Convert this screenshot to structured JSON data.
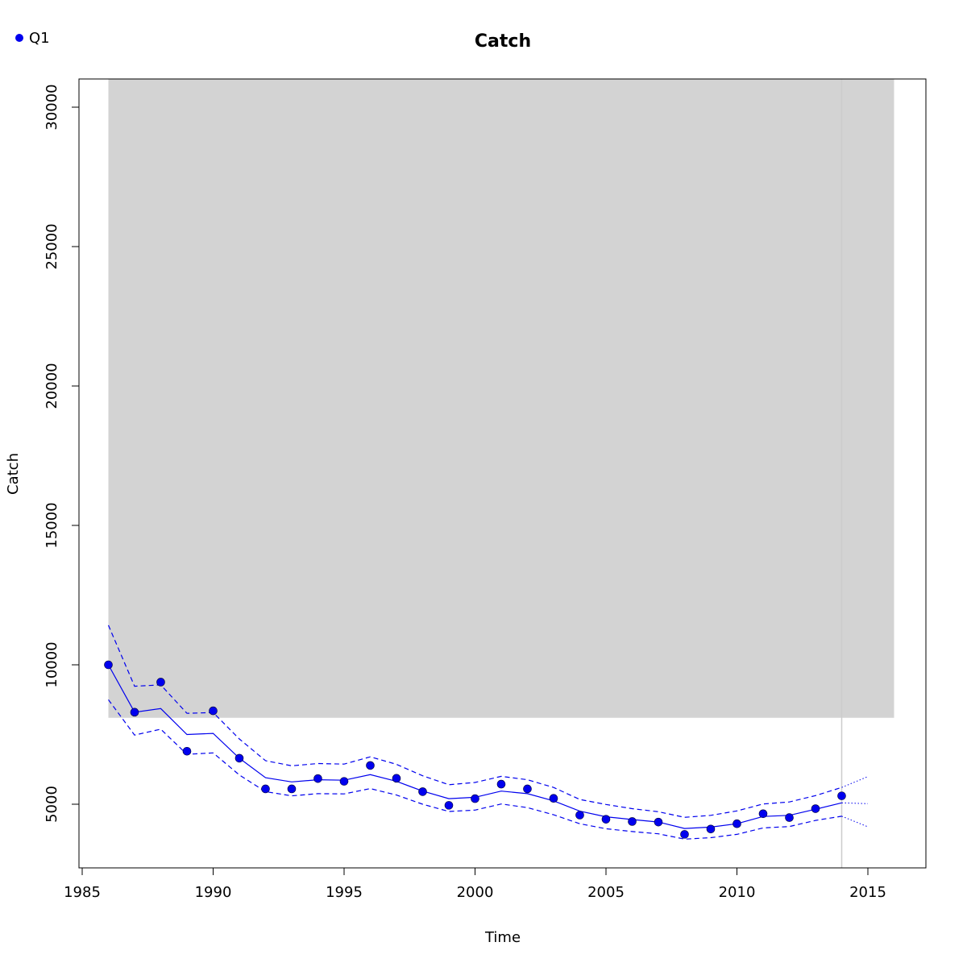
{
  "chart_data": {
    "type": "line",
    "title": "Catch",
    "xlabel": "Time",
    "ylabel": "Catch",
    "xlim": [
      1985,
      2017
    ],
    "ylim": [
      2750,
      31000
    ],
    "xticks": [
      1985,
      1990,
      1995,
      2000,
      2005,
      2010,
      2015
    ],
    "yticks": [
      5000,
      10000,
      15000,
      20000,
      25000,
      30000
    ],
    "legend": {
      "position": "top-left",
      "entries": [
        {
          "label": "Q1",
          "color": "#0000ee"
        }
      ]
    },
    "shaded_region": {
      "x": [
        1986,
        2016
      ],
      "y": [
        8100,
        31000
      ],
      "color": "#d3d3d3"
    },
    "vertical_line": {
      "x": 2014,
      "color": "#cccccc"
    },
    "series": [
      {
        "name": "Q1",
        "role": "observed",
        "style": "points",
        "color": "#0000ee",
        "x": [
          1986,
          1987,
          1988,
          1989,
          1990,
          1991,
          1992,
          1993,
          1994,
          1995,
          1996,
          1997,
          1998,
          1999,
          2000,
          2001,
          2002,
          2003,
          2004,
          2005,
          2006,
          2007,
          2008,
          2009,
          2010,
          2011,
          2012,
          2013,
          2014
        ],
        "y": [
          10000,
          8300,
          9380,
          6900,
          8350,
          6650,
          5550,
          5550,
          5920,
          5820,
          6390,
          5930,
          5450,
          4960,
          5200,
          5720,
          5550,
          5210,
          4610,
          4460,
          4380,
          4360,
          3920,
          4110,
          4300,
          4660,
          4520,
          4840,
          5300
        ]
      },
      {
        "role": "fit",
        "style": "solid",
        "color": "#0000ee",
        "x": [
          1986,
          1987,
          1988,
          1989,
          1990,
          1991,
          1992,
          1993,
          1994,
          1995,
          1996,
          1997,
          1998,
          1999,
          2000,
          2001,
          2002,
          2003,
          2004,
          2005,
          2006,
          2007,
          2008,
          2009,
          2010,
          2011,
          2012,
          2013,
          2014
        ],
        "y": [
          10000,
          8300,
          8430,
          7500,
          7540,
          6650,
          5950,
          5800,
          5880,
          5860,
          6060,
          5820,
          5470,
          5200,
          5250,
          5470,
          5380,
          5120,
          4750,
          4550,
          4450,
          4360,
          4130,
          4180,
          4300,
          4560,
          4600,
          4820,
          5050
        ]
      },
      {
        "role": "upper-ci",
        "style": "dashed",
        "color": "#0000ee",
        "x": [
          1986,
          1987,
          1988,
          1989,
          1990,
          1991,
          1992,
          1993,
          1994,
          1995,
          1996,
          1997,
          1998,
          1999,
          2000,
          2001,
          2002,
          2003,
          2004,
          2005,
          2006,
          2007,
          2008,
          2009,
          2010,
          2011,
          2012,
          2013,
          2014
        ],
        "y": [
          11420,
          9230,
          9280,
          8260,
          8290,
          7340,
          6560,
          6380,
          6460,
          6440,
          6700,
          6430,
          6020,
          5700,
          5780,
          6000,
          5880,
          5600,
          5170,
          4990,
          4840,
          4730,
          4530,
          4600,
          4760,
          5010,
          5080,
          5310,
          5600
        ]
      },
      {
        "role": "lower-ci",
        "style": "dashed",
        "color": "#0000ee",
        "x": [
          1986,
          1987,
          1988,
          1989,
          1990,
          1991,
          1992,
          1993,
          1994,
          1995,
          1996,
          1997,
          1998,
          1999,
          2000,
          2001,
          2002,
          2003,
          2004,
          2005,
          2006,
          2007,
          2008,
          2009,
          2010,
          2011,
          2012,
          2013,
          2014
        ],
        "y": [
          8750,
          7480,
          7690,
          6790,
          6840,
          6050,
          5450,
          5300,
          5380,
          5370,
          5560,
          5330,
          5000,
          4740,
          4790,
          5010,
          4880,
          4620,
          4300,
          4120,
          4020,
          3940,
          3750,
          3800,
          3920,
          4150,
          4200,
          4420,
          4570
        ]
      },
      {
        "role": "forecast",
        "style": "dotted",
        "color": "#0000ee",
        "x": [
          2014,
          2015
        ],
        "y": [
          5050,
          5020
        ]
      },
      {
        "role": "forecast-upper",
        "style": "dotted",
        "color": "#0000ee",
        "x": [
          2014,
          2015
        ],
        "y": [
          5600,
          5990
        ]
      },
      {
        "role": "forecast-lower",
        "style": "dotted",
        "color": "#0000ee",
        "x": [
          2014,
          2015
        ],
        "y": [
          4570,
          4190
        ]
      }
    ]
  }
}
